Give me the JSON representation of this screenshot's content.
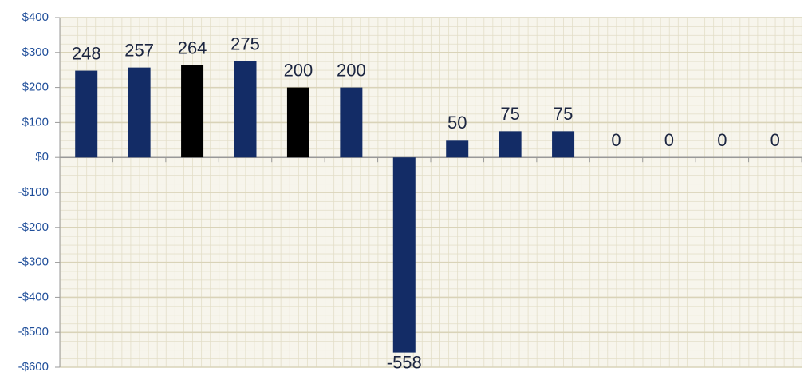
{
  "chart_data": {
    "type": "bar",
    "categories": [
      null,
      null,
      null,
      null,
      null,
      null,
      null,
      null,
      null,
      null,
      null,
      null,
      null,
      null
    ],
    "values": [
      248,
      257,
      264,
      275,
      200,
      200,
      -558,
      50,
      75,
      75,
      0,
      0,
      0,
      0
    ],
    "colors": [
      "#132c66",
      "#132c66",
      "#000000",
      "#132c66",
      "#000000",
      "#132c66",
      "#132c66",
      "#132c66",
      "#132c66",
      "#132c66",
      "#132c66",
      "#132c66",
      "#132c66",
      "#132c66"
    ],
    "ylim": [
      -600,
      400
    ],
    "yticks": [
      {
        "value": -600,
        "label": "-$600"
      },
      {
        "value": -500,
        "label": "-$500"
      },
      {
        "value": -400,
        "label": "-$400"
      },
      {
        "value": -300,
        "label": "-$300"
      },
      {
        "value": -200,
        "label": "-$200"
      },
      {
        "value": -100,
        "label": "-$100"
      },
      {
        "value": 0,
        "label": "$0"
      },
      {
        "value": 100,
        "label": "$100"
      },
      {
        "value": 200,
        "label": "$200"
      },
      {
        "value": 300,
        "label": "$300"
      },
      {
        "value": 400,
        "label": "$400"
      }
    ],
    "grid": true
  }
}
